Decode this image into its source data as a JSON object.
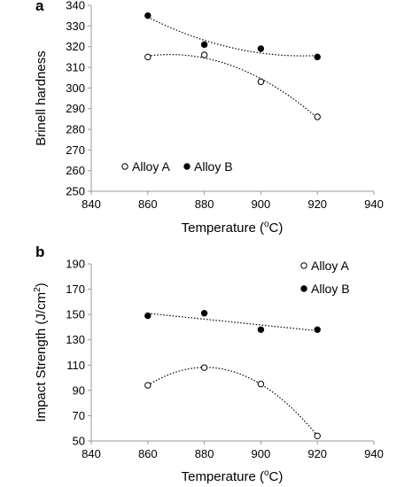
{
  "chart_data": [
    {
      "type": "scatter",
      "panel_label": "a",
      "xlabel_main": "Temperature (",
      "xlabel_sup": "o",
      "xlabel_end": "C)",
      "ylabel": "Brinell hardness",
      "ylabel_sup": "",
      "ylabel_end": "",
      "xlim": [
        840,
        940
      ],
      "ylim": [
        250,
        340
      ],
      "xticks": [
        840,
        860,
        880,
        900,
        920,
        940
      ],
      "yticks": [
        250,
        260,
        270,
        280,
        290,
        300,
        310,
        320,
        330,
        340
      ],
      "grid": false,
      "legend_position": "lower-left",
      "series": [
        {
          "name": "Alloy A",
          "marker": "open-circle",
          "x": [
            860,
            880,
            900,
            920
          ],
          "y": [
            315,
            316,
            303,
            286
          ],
          "trend": "polynomial"
        },
        {
          "name": "Alloy B",
          "marker": "filled-circle",
          "x": [
            860,
            880,
            900,
            920
          ],
          "y": [
            335,
            321,
            319,
            315
          ],
          "trend": "polynomial"
        }
      ]
    },
    {
      "type": "scatter",
      "panel_label": "b",
      "xlabel_main": "Temperature (",
      "xlabel_sup": "o",
      "xlabel_end": "C)",
      "ylabel": "Impact Strength (J/cm",
      "ylabel_sup": "2",
      "ylabel_end": ")",
      "xlim": [
        840,
        940
      ],
      "ylim": [
        50,
        190
      ],
      "xticks": [
        840,
        860,
        880,
        900,
        920,
        940
      ],
      "yticks": [
        50,
        70,
        90,
        110,
        130,
        150,
        170,
        190
      ],
      "grid": false,
      "legend_position": "top-right",
      "series": [
        {
          "name": "Alloy A",
          "marker": "open-circle",
          "x": [
            860,
            880,
            900,
            920
          ],
          "y": [
            94,
            108,
            95,
            54
          ],
          "trend": "polynomial"
        },
        {
          "name": "Alloy B",
          "marker": "filled-circle",
          "x": [
            860,
            880,
            900,
            920
          ],
          "y": [
            149,
            151,
            138,
            138
          ],
          "trend": "linear"
        }
      ]
    }
  ],
  "colors": {
    "marker": "#000000",
    "axis": "#9a9a9a",
    "trend": "#000000"
  }
}
